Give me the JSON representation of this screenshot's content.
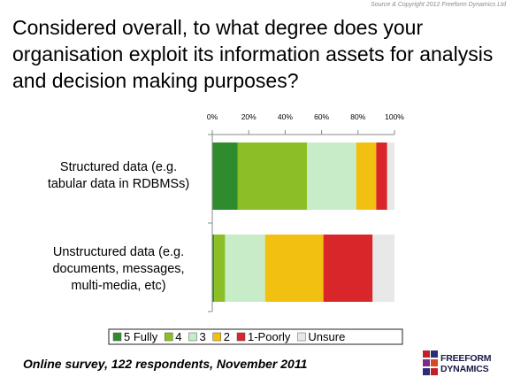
{
  "source": "Source & Copyright 2012 Freeform Dynamics Ltd",
  "title": "Considered overall, to what degree does your organisation exploit its information assets for analysis and decision making purposes?",
  "footer": "Online survey, 122 respondents, November 2011",
  "logo": {
    "line1": "FREEFORM",
    "line2": "DYNAMICS"
  },
  "chart_data": {
    "type": "bar",
    "orientation": "horizontal",
    "stacked": true,
    "percent_scale": true,
    "categories": [
      "Structured data (e.g. tabular data in RDBMSs)",
      "Unstructured data (e.g. documents, messages, multi-media, etc)"
    ],
    "category_lines": [
      [
        "Structured data (e.g.",
        "tabular data in RDBMSs)"
      ],
      [
        "Unstructured data (e.g.",
        "documents, messages,",
        "multi-media, etc)"
      ]
    ],
    "x_ticks": [
      "0%",
      "20%",
      "40%",
      "60%",
      "80%",
      "100%"
    ],
    "xlim": [
      0,
      100
    ],
    "legend_position": "bottom",
    "series": [
      {
        "name": "5 Fully",
        "color": "#2e8b2e",
        "values": [
          14,
          1
        ]
      },
      {
        "name": "4",
        "color": "#8cbf26",
        "values": [
          38,
          6
        ]
      },
      {
        "name": "3",
        "color": "#c8ecc8",
        "values": [
          27,
          22
        ]
      },
      {
        "name": "2",
        "color": "#f2c010",
        "values": [
          11,
          32
        ]
      },
      {
        "name": "1-Poorly",
        "color": "#d9262b",
        "values": [
          6,
          27
        ]
      },
      {
        "name": "Unsure",
        "color": "#e8e8e8",
        "values": [
          4,
          12
        ]
      }
    ]
  }
}
